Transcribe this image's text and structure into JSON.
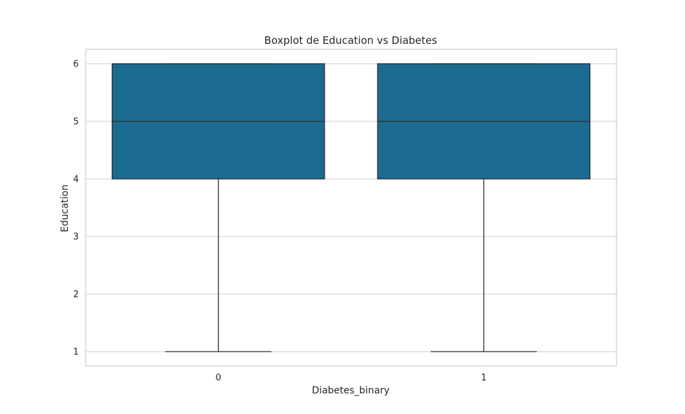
{
  "chart_data": {
    "type": "boxplot",
    "title": "Boxplot de Education vs Diabetes",
    "xlabel": "Diabetes_binary",
    "ylabel": "Education",
    "categories": [
      "0",
      "1"
    ],
    "boxes": [
      {
        "category": "0",
        "whisker_low": 1,
        "q1": 4,
        "median": 5,
        "q3": 6,
        "whisker_high": 6
      },
      {
        "category": "1",
        "whisker_low": 1,
        "q1": 4,
        "median": 5,
        "q3": 6,
        "whisker_high": 6
      }
    ],
    "y_ticks": [
      1,
      2,
      3,
      4,
      5,
      6
    ],
    "ylim": [
      0.75,
      6.25
    ],
    "grid": true,
    "colors": {
      "box_fill": "#1a6b8f",
      "line": "#2b2b2b",
      "grid": "#cccccc",
      "frame": "#cccccc"
    }
  }
}
